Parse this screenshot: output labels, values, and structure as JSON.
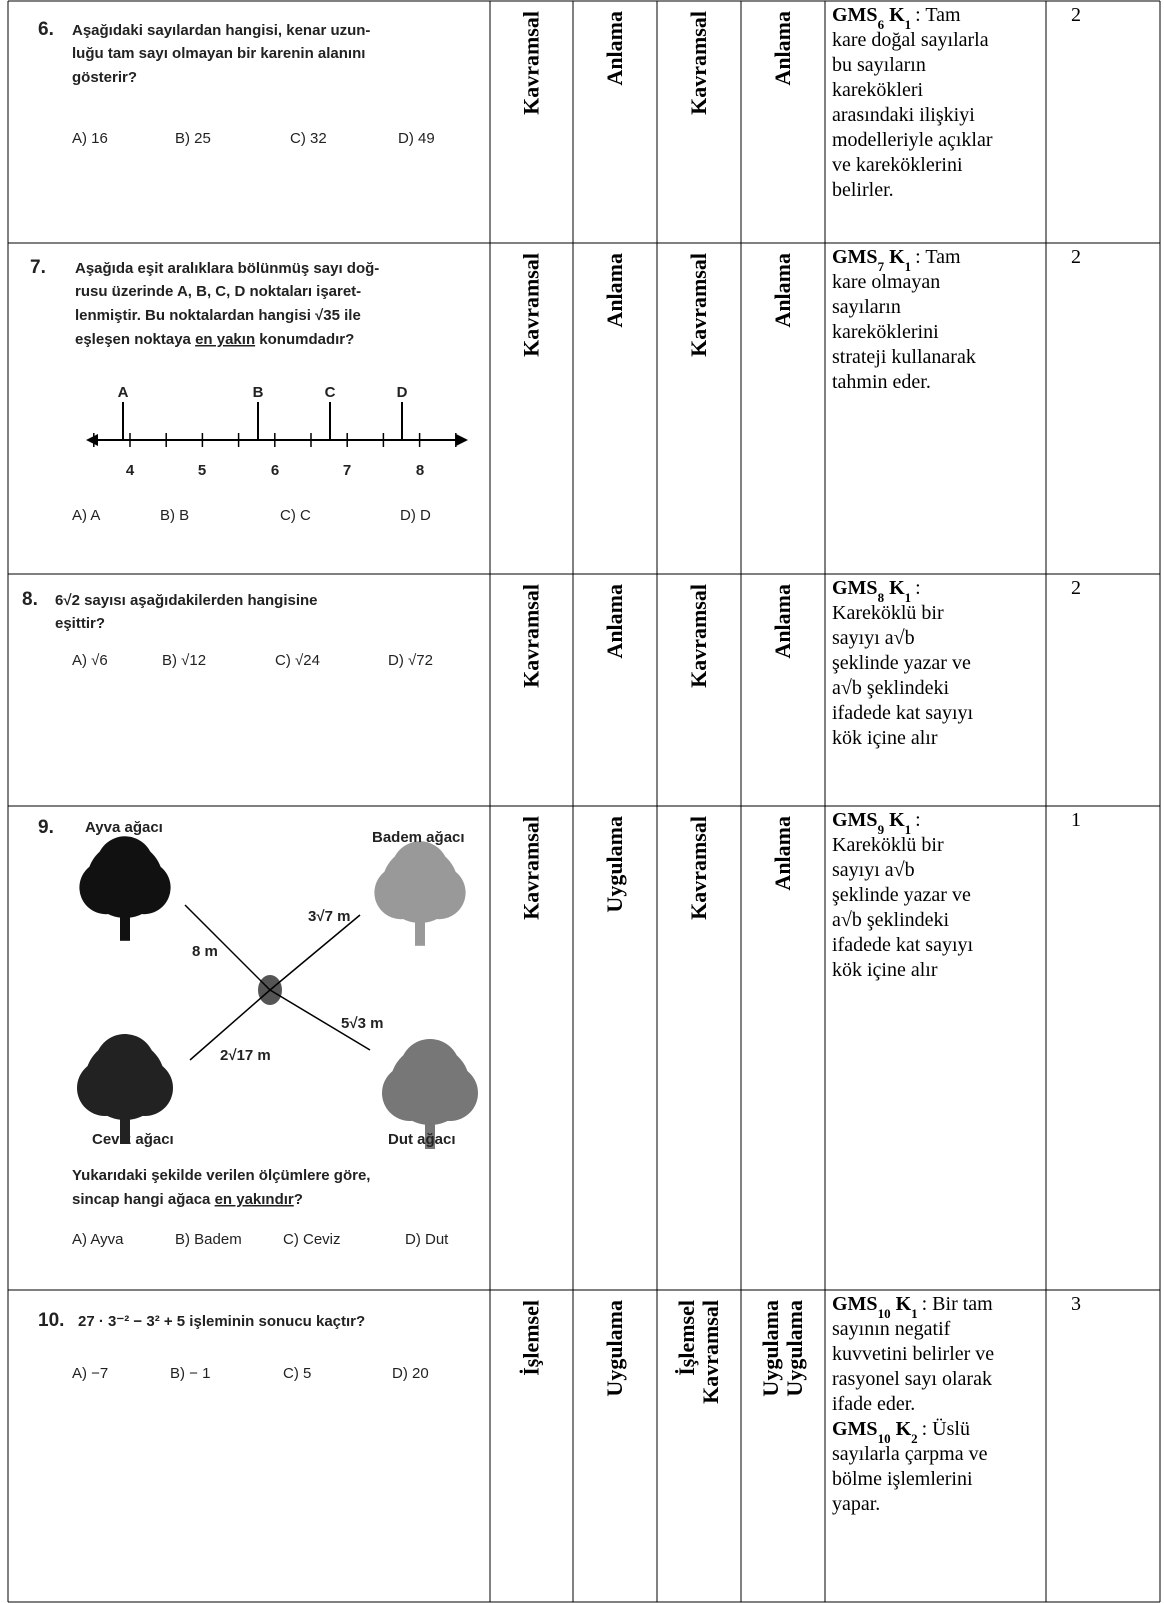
{
  "rows": [
    {
      "question": {
        "number": "6.",
        "lines": [
          "Aşağıdaki sayılardan hangisi, kenar uzun-",
          "luğu tam sayı olmayan bir karenin alanını",
          "gösterir?"
        ],
        "options": [
          "A) 16",
          "B) 25",
          "C) 32",
          "D) 49"
        ]
      },
      "levels": [
        [
          "Kavramsal"
        ],
        [
          "Anlama"
        ],
        [
          "Kavramsal"
        ],
        [
          "Anlama"
        ]
      ],
      "outcomes": [
        {
          "code": "GMS",
          "sub": "6",
          "k": "K",
          "ksub": "1",
          "lines": [
            ": Tam",
            "kare doğal sayılarla",
            "bu sayıların",
            "karekökleri",
            "arasındaki ilişkiyi",
            "modelleriyle açıklar",
            "ve kareköklerini",
            "belirler."
          ]
        }
      ],
      "score": "2"
    },
    {
      "question": {
        "number": "7.",
        "lines": [
          "Aşağıda eşit aralıklara bölünmüş sayı doğ-",
          "rusu üzerinde A, B, C, D noktaları işaret-",
          "lenmiştir. Bu noktalardan hangisi √35 ile",
          {
            "pre": "eşleşen noktaya ",
            "under": "en yakın",
            "post": " konumdadır?"
          }
        ],
        "figure": {
          "points": [
            "A",
            "B",
            "C",
            "D"
          ],
          "ticks": [
            "4",
            "5",
            "6",
            "7",
            "8"
          ]
        },
        "options": [
          "A) A",
          "B) B",
          "C) C",
          "D) D"
        ]
      },
      "levels": [
        [
          "Kavramsal"
        ],
        [
          "Anlama"
        ],
        [
          "Kavramsal"
        ],
        [
          "Anlama"
        ]
      ],
      "outcomes": [
        {
          "code": "GMS",
          "sub": "7",
          "k": "K",
          "ksub": "1",
          "lines": [
            ": Tam",
            "kare olmayan",
            "sayıların",
            "kareköklerini",
            "strateji kullanarak",
            "tahmin eder."
          ]
        }
      ],
      "score": "2"
    },
    {
      "question": {
        "number": "8.",
        "lines": [
          "6√2  sayısı aşağıdakilerden hangisine",
          "eşittir?"
        ],
        "options": [
          "A) √6",
          "B) √12",
          "C) √24",
          "D) √72"
        ]
      },
      "levels": [
        [
          "Kavramsal"
        ],
        [
          "Anlama"
        ],
        [
          "Kavramsal"
        ],
        [
          "Anlama"
        ]
      ],
      "outcomes": [
        {
          "code": "GMS",
          "sub": "8",
          "k": "K",
          "ksub": "1",
          "lines": [
            ":",
            "Kareköklü bir",
            "sayıyı  a√b",
            "şeklinde yazar ve",
            "a√b  şeklindeki",
            "ifadede kat sayıyı",
            "kök içine alır"
          ]
        }
      ],
      "score": "2"
    },
    {
      "question": {
        "number": "9.",
        "figure": {
          "labels": [
            "Ayva ağacı",
            "Badem ağacı",
            "Ceviz ağacı",
            "Dut ağacı",
            "8 m",
            "3√7 m",
            "2√17 m",
            "5√3 m"
          ]
        },
        "lines": [
          "Yukarıdaki şekilde verilen ölçümlere göre,",
          {
            "pre": "sincap hangi ağaca ",
            "under": "en yakındır",
            "post": "?"
          }
        ],
        "options": [
          "A) Ayva",
          "B) Badem",
          "C) Ceviz",
          "D) Dut"
        ]
      },
      "levels": [
        [
          "Kavramsal"
        ],
        [
          "Uygulama"
        ],
        [
          "Kavramsal"
        ],
        [
          "Anlama"
        ]
      ],
      "outcomes": [
        {
          "code": "GMS",
          "sub": "9",
          "k": "K",
          "ksub": "1",
          "lines": [
            ":",
            "Kareköklü bir",
            "sayıyı  a√b",
            "şeklinde yazar ve",
            "a√b  şeklindeki",
            "ifadede kat sayıyı",
            "kök içine alır"
          ]
        }
      ],
      "score": "1"
    },
    {
      "question": {
        "number": "10.",
        "lines": [
          "27 · 3⁻² − 3² + 5 işleminin sonucu kaçtır?"
        ],
        "options": [
          "A) −7",
          "B) − 1",
          "C) 5",
          "D) 20"
        ]
      },
      "levels": [
        [
          "İşlemsel"
        ],
        [
          "Uygulama"
        ],
        [
          "İşlemsel",
          "Kavramsal"
        ],
        [
          "Uygulama",
          "Uygulama"
        ]
      ],
      "outcomes": [
        {
          "code": "GMS",
          "sub": "10",
          "k": "K",
          "ksub": "1",
          "lines": [
            ": Bir tam",
            "sayının negatif",
            "kuvvetini belirler ve",
            "rasyonel sayı olarak",
            "ifade eder."
          ]
        },
        {
          "code": "GMS",
          "sub": "10",
          "k": "K",
          "ksub": "2",
          "lines": [
            ": Üslü",
            "sayılarla çarpma ve",
            "bölme işlemlerini",
            "yapar."
          ]
        }
      ],
      "score": "3"
    }
  ]
}
